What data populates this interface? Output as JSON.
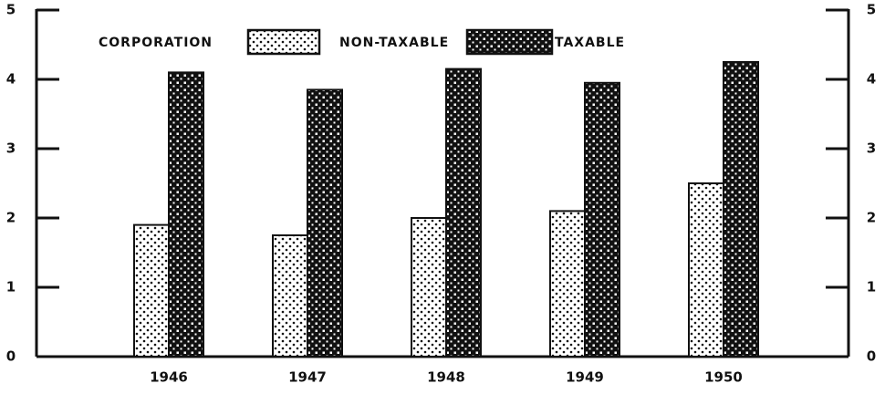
{
  "chart_data": {
    "type": "bar",
    "legend_title": "CORPORATION",
    "categories": [
      "1946",
      "1947",
      "1948",
      "1949",
      "1950"
    ],
    "series": [
      {
        "name": "NON-TAXABLE",
        "color": "#111111",
        "pattern": "dots",
        "values": [
          1.9,
          1.75,
          2.0,
          2.1,
          2.5
        ]
      },
      {
        "name": "TAXABLE",
        "color": "#111111",
        "pattern": "checker",
        "values": [
          4.1,
          3.85,
          4.15,
          3.95,
          4.25
        ]
      }
    ],
    "ylim": [
      0,
      5
    ],
    "yticks": [
      0,
      1,
      2,
      3,
      4,
      5
    ],
    "y2lim": [
      0,
      5
    ],
    "y2ticks": [
      0,
      1,
      2,
      3,
      4,
      5
    ],
    "grid": false,
    "legend": "top-left"
  }
}
